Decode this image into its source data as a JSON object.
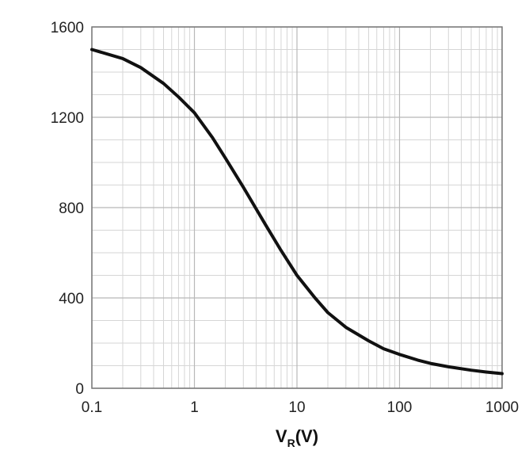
{
  "chart_data": {
    "type": "line",
    "title": "",
    "xlabel": "V",
    "xlabel_sub": "R",
    "xlabel_unit": "(V)",
    "ylabel": "",
    "x_scale": "log",
    "xlim": [
      0.1,
      1000
    ],
    "ylim": [
      0,
      1600
    ],
    "x_ticks": [
      0.1,
      1,
      10,
      100,
      1000
    ],
    "x_tick_labels": [
      "0.1",
      "1",
      "10",
      "100",
      "1000"
    ],
    "y_ticks": [
      0,
      400,
      800,
      1200,
      1600
    ],
    "y_tick_labels": [
      "0",
      "400",
      "800",
      "1200",
      "1600"
    ],
    "grid": true,
    "legend": "none",
    "series": [
      {
        "x": [
          0.1,
          0.2,
          0.3,
          0.5,
          0.7,
          1,
          1.5,
          2,
          3,
          5,
          7,
          10,
          15,
          20,
          30,
          50,
          70,
          100,
          150,
          200,
          300,
          500,
          700,
          1000
        ],
        "y": [
          1500,
          1460,
          1420,
          1350,
          1290,
          1220,
          1110,
          1020,
          890,
          720,
          610,
          500,
          400,
          335,
          270,
          210,
          175,
          150,
          125,
          110,
          95,
          80,
          72,
          65
        ]
      }
    ],
    "colors": {
      "line": "#111111",
      "grid": "#b8b8b8",
      "grid_minor": "#d6d6d6",
      "frame": "#777777"
    }
  }
}
